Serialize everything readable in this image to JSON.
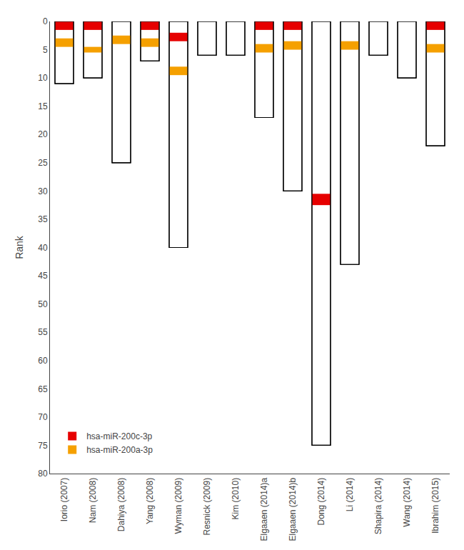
{
  "chart_data": {
    "type": "bar",
    "categories": [
      "Iorio (2007)",
      "Nam (2008)",
      "Dahiya (2008)",
      "Yang (2008)",
      "Wyman (2009)",
      "Resnick (2009)",
      "Kim (2010)",
      "Elgaaen (2014)a",
      "Elgaaen (2014)b",
      "Dong (2014)",
      "Li (2014)",
      "Shapira (2014)",
      "Wang (2014)",
      "Ibrahim (2015)"
    ],
    "series": [
      {
        "color": "#ffffff",
        "values": [
          11,
          10,
          25,
          7,
          40,
          6,
          6,
          17,
          30,
          75,
          43,
          6,
          10,
          22
        ]
      },
      {
        "name": "hsa-miR-200c-3p",
        "color": "#e60000",
        "values": [
          [
            0,
            1.5
          ],
          [
            0,
            1.5
          ],
          null,
          [
            0,
            1.5
          ],
          [
            2.0,
            3.5
          ],
          null,
          null,
          [
            0,
            1.5
          ],
          [
            0,
            1.5
          ],
          [
            30.5,
            32.5
          ],
          null,
          null,
          null,
          [
            0,
            1.5
          ]
        ]
      },
      {
        "name": "hsa-miR-200a-3p",
        "color": "#f5a000",
        "values": [
          [
            3.0,
            4.5
          ],
          [
            4.5,
            5.5
          ],
          [
            2.5,
            4.0
          ],
          [
            3.0,
            4.5
          ],
          [
            8.0,
            9.5
          ],
          null,
          null,
          [
            4.0,
            5.5
          ],
          [
            3.5,
            5.0
          ],
          null,
          [
            3.5,
            5.0
          ],
          null,
          null,
          [
            4.0,
            5.5
          ]
        ]
      }
    ],
    "ylabel": "Rank",
    "ylim": [
      80,
      0
    ],
    "yticks": [
      0,
      5,
      10,
      15,
      20,
      25,
      30,
      35,
      40,
      45,
      50,
      55,
      60,
      65,
      70,
      75,
      80
    ],
    "grid": false,
    "legend": "lower left"
  }
}
